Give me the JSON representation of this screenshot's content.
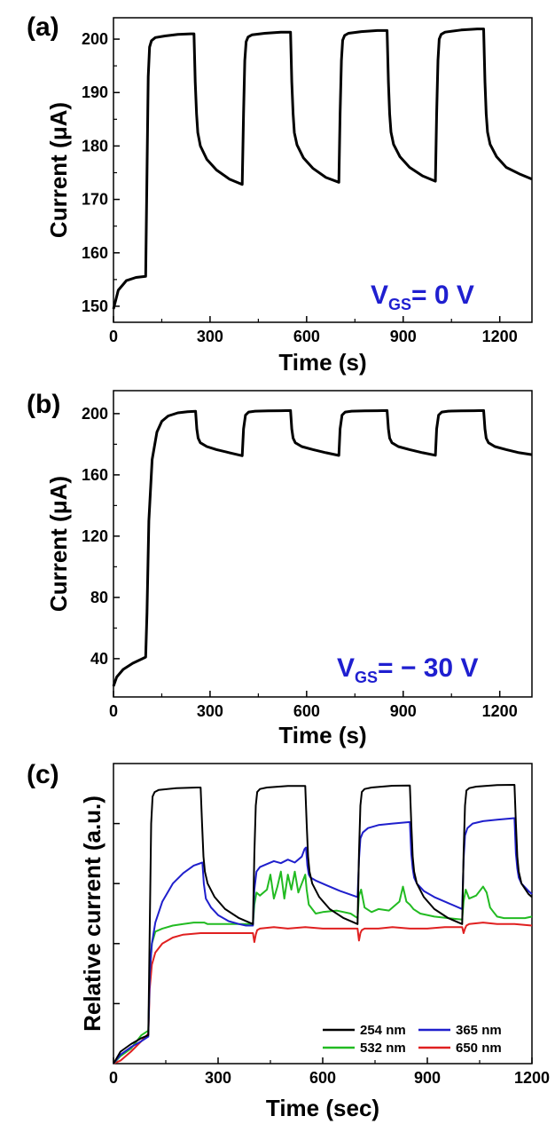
{
  "chart_data": [
    {
      "type": "line",
      "panel_label": "(a)",
      "xlabel": "Time (s)",
      "ylabel": "Current (μA)",
      "xlim": [
        0,
        1300
      ],
      "ylim": [
        147,
        204
      ],
      "xticks": [
        0,
        300,
        600,
        900,
        1200
      ],
      "yticks": [
        150,
        160,
        170,
        180,
        190,
        200
      ],
      "annotation": {
        "main": "V",
        "sub": "GS",
        "rest": "= 0 V",
        "color": "#1f1fd0"
      },
      "series": [
        {
          "color": "#000000",
          "x": [
            0,
            15,
            40,
            70,
            100,
            104,
            108,
            112,
            118,
            130,
            160,
            200,
            240,
            250,
            254,
            258,
            262,
            270,
            290,
            320,
            360,
            400,
            404,
            408,
            412,
            418,
            430,
            470,
            520,
            550,
            554,
            558,
            562,
            570,
            590,
            620,
            660,
            700,
            704,
            708,
            712,
            718,
            730,
            770,
            820,
            850,
            854,
            858,
            862,
            870,
            890,
            920,
            960,
            1000,
            1004,
            1008,
            1012,
            1018,
            1030,
            1080,
            1130,
            1150,
            1154,
            1158,
            1162,
            1170,
            1190,
            1220,
            1260,
            1300
          ],
          "y": [
            149.5,
            153,
            154.8,
            155.4,
            155.6,
            175,
            193,
            198.5,
            199.7,
            200.3,
            200.6,
            200.9,
            201.0,
            201.0,
            192,
            186,
            182.5,
            180,
            177.5,
            175.5,
            173.8,
            172.8,
            186,
            196,
            199.5,
            200.4,
            200.8,
            201.1,
            201.3,
            201.3,
            192,
            186,
            182.5,
            180.2,
            177.8,
            175.8,
            174.1,
            173.2,
            186,
            196,
            199.8,
            200.7,
            201.1,
            201.4,
            201.6,
            201.6,
            192,
            186,
            182.6,
            180.3,
            178,
            176,
            174.4,
            173.4,
            186,
            196,
            200,
            200.9,
            201.3,
            201.7,
            201.9,
            201.9,
            192,
            186,
            182.6,
            180.3,
            178,
            176,
            174.8,
            173.8
          ]
        }
      ]
    },
    {
      "type": "line",
      "panel_label": "(b)",
      "xlabel": "Time (s)",
      "ylabel": "Current (μA)",
      "xlim": [
        0,
        1300
      ],
      "ylim": [
        15,
        215
      ],
      "xticks": [
        0,
        300,
        600,
        900,
        1200
      ],
      "yticks": [
        40,
        80,
        120,
        160,
        200
      ],
      "annotation": {
        "main": "V",
        "sub": "GS",
        "rest": "= − 30 V",
        "color": "#1f1fd0"
      },
      "series": [
        {
          "color": "#000000",
          "x": [
            0,
            10,
            30,
            60,
            90,
            100,
            104,
            110,
            120,
            135,
            150,
            170,
            200,
            230,
            255,
            259,
            263,
            270,
            290,
            320,
            360,
            400,
            404,
            410,
            420,
            440,
            480,
            520,
            550,
            554,
            558,
            565,
            585,
            620,
            660,
            700,
            704,
            710,
            720,
            740,
            780,
            820,
            850,
            854,
            858,
            865,
            885,
            920,
            960,
            1000,
            1004,
            1010,
            1020,
            1040,
            1080,
            1120,
            1150,
            1154,
            1158,
            1165,
            1185,
            1220,
            1260,
            1300
          ],
          "y": [
            22,
            28,
            33,
            37,
            40,
            41,
            70,
            130,
            170,
            188,
            195,
            198.5,
            200.5,
            201.2,
            201.5,
            190,
            184,
            181,
            178.5,
            176.5,
            174.5,
            172.5,
            190,
            199,
            201,
            201.6,
            201.8,
            201.9,
            202,
            190,
            184,
            181,
            178.5,
            176.5,
            174.5,
            172.7,
            190,
            199,
            201,
            201.6,
            201.8,
            201.9,
            202,
            190,
            184,
            181,
            178.5,
            176.5,
            174.5,
            172.8,
            190,
            199,
            201,
            201.6,
            201.8,
            201.9,
            202,
            190,
            184,
            181,
            178.5,
            176.5,
            174.5,
            173.2
          ]
        }
      ]
    },
    {
      "type": "line",
      "panel_label": "(c)",
      "xlabel": "Time (sec)",
      "ylabel": "Relative current (a.u.)",
      "xlim": [
        0,
        1200
      ],
      "ylim": [
        0,
        100
      ],
      "xticks": [
        0,
        300,
        600,
        900,
        1200
      ],
      "legend": {
        "position": "bottom-right",
        "columns": 2
      },
      "series": [
        {
          "name": "254 nm",
          "color": "#000000",
          "x": [
            0,
            20,
            50,
            80,
            100,
            104,
            108,
            112,
            118,
            130,
            180,
            240,
            250,
            254,
            258,
            262,
            270,
            290,
            320,
            360,
            400,
            404,
            408,
            412,
            420,
            440,
            500,
            550,
            554,
            558,
            562,
            570,
            590,
            620,
            660,
            700,
            704,
            708,
            712,
            720,
            740,
            800,
            850,
            854,
            858,
            862,
            870,
            890,
            920,
            960,
            1000,
            1004,
            1008,
            1012,
            1020,
            1040,
            1100,
            1150,
            1154,
            1158,
            1162,
            1170,
            1190,
            1200
          ],
          "y": [
            0,
            4,
            6.5,
            8.5,
            9.5,
            45,
            80,
            89,
            90.5,
            91.2,
            91.8,
            92,
            92,
            80,
            69,
            64,
            60,
            55.5,
            51.5,
            48.5,
            46.5,
            70,
            86,
            90.5,
            91.5,
            92,
            92.5,
            92.5,
            80,
            69,
            64,
            60,
            55.5,
            51.5,
            48.5,
            46.5,
            70,
            86,
            90.5,
            91.5,
            92,
            92.6,
            92.7,
            80,
            69,
            64,
            60,
            55.5,
            51.5,
            48.5,
            46.5,
            70,
            86,
            91,
            91.8,
            92.3,
            92.8,
            92.9,
            80,
            69,
            64,
            60,
            56.5,
            55.5
          ]
        },
        {
          "name": "365 nm",
          "color": "#1f1fcc",
          "x": [
            0,
            20,
            50,
            80,
            100,
            104,
            110,
            120,
            140,
            170,
            200,
            230,
            255,
            259,
            265,
            280,
            300,
            330,
            360,
            380,
            400,
            404,
            410,
            420,
            440,
            460,
            480,
            500,
            520,
            540,
            548,
            552,
            556,
            560,
            565,
            580,
            610,
            650,
            700,
            704,
            708,
            715,
            730,
            760,
            800,
            850,
            854,
            858,
            862,
            870,
            890,
            920,
            960,
            1000,
            1004,
            1008,
            1015,
            1030,
            1060,
            1100,
            1150,
            1154,
            1158,
            1162,
            1170,
            1190,
            1200
          ],
          "y": [
            0,
            3,
            5.5,
            7.5,
            9,
            30,
            40,
            47,
            54,
            60,
            63.5,
            66,
            67,
            60,
            55,
            52,
            49.5,
            47.5,
            46.5,
            46,
            46,
            58,
            64,
            65.5,
            66.5,
            67.5,
            66.8,
            68,
            67,
            69,
            71.5,
            72,
            66,
            63,
            62,
            61,
            59.5,
            57.5,
            55.5,
            68,
            75,
            77,
            78.5,
            79.5,
            80,
            80.5,
            70,
            65,
            62,
            60,
            57.5,
            55.5,
            53.5,
            51.5,
            68,
            76,
            78.5,
            80,
            80.8,
            81.3,
            81.8,
            70,
            65,
            62,
            60,
            57.5,
            56.5
          ]
        },
        {
          "name": "532 nm",
          "color": "#22bb22",
          "x": [
            0,
            20,
            50,
            80,
            100,
            104,
            110,
            120,
            140,
            170,
            200,
            230,
            255,
            260,
            270,
            300,
            350,
            400,
            404,
            410,
            420,
            440,
            450,
            460,
            470,
            480,
            490,
            500,
            510,
            520,
            530,
            540,
            550,
            554,
            560,
            580,
            600,
            640,
            680,
            700,
            704,
            710,
            720,
            740,
            760,
            790,
            820,
            830,
            840,
            850,
            860,
            880,
            920,
            960,
            1000,
            1004,
            1010,
            1020,
            1040,
            1060,
            1070,
            1080,
            1090,
            1100,
            1120,
            1150,
            1180,
            1200
          ],
          "y": [
            0,
            2.5,
            5,
            9.5,
            11,
            30,
            40,
            44,
            45,
            46,
            46.5,
            47,
            47,
            47,
            46.5,
            46.5,
            46.5,
            46.5,
            53,
            57,
            56,
            58,
            63,
            55,
            59,
            64,
            55,
            63,
            58,
            64,
            57,
            60,
            63,
            58,
            53,
            50,
            50.5,
            51,
            50,
            48.5,
            56,
            58,
            52,
            50.5,
            51.5,
            51,
            54,
            59,
            54,
            53,
            51.5,
            50,
            49,
            48.5,
            48,
            54,
            58,
            55,
            56,
            59,
            57,
            52,
            50.5,
            49,
            48.5,
            48.5,
            48.5,
            49
          ]
        },
        {
          "name": "650 nm",
          "color": "#e02020",
          "x": [
            0,
            20,
            50,
            80,
            100,
            104,
            110,
            120,
            140,
            170,
            200,
            250,
            300,
            350,
            400,
            404,
            408,
            412,
            420,
            460,
            500,
            550,
            600,
            650,
            700,
            704,
            708,
            712,
            720,
            760,
            800,
            850,
            900,
            950,
            1000,
            1004,
            1008,
            1012,
            1020,
            1060,
            1100,
            1150,
            1200
          ],
          "y": [
            0,
            1,
            4,
            7.5,
            10,
            25,
            33,
            37,
            40,
            42,
            43,
            43.5,
            43.5,
            43.5,
            43.5,
            40.5,
            43,
            44.5,
            45,
            45.5,
            45,
            45.5,
            45,
            45,
            45,
            41,
            43.5,
            44.5,
            45,
            45,
            45.5,
            45,
            45,
            45.5,
            45.5,
            43.5,
            45,
            46,
            46.5,
            47,
            46.5,
            46.5,
            46
          ]
        }
      ]
    }
  ]
}
